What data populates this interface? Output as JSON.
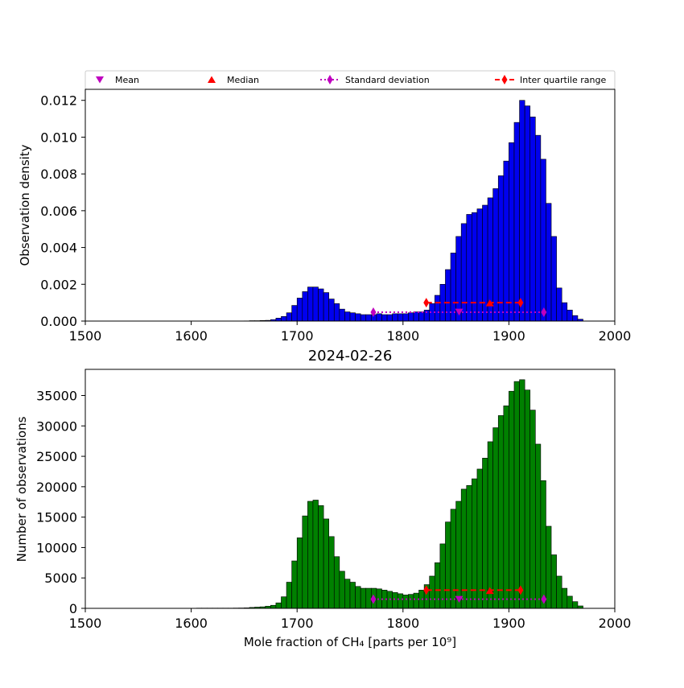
{
  "legend": [
    {
      "key": "mean",
      "label": "Mean",
      "color": "#bf00bf",
      "marker": "triangle-down"
    },
    {
      "key": "median",
      "label": "Median",
      "color": "#ff0000",
      "marker": "triangle-up"
    },
    {
      "key": "std",
      "label": "Standard deviation",
      "color": "#bf00bf",
      "marker": "diamond",
      "line": "dotted"
    },
    {
      "key": "iqr",
      "label": "Inter quartile range",
      "color": "#ff0000",
      "marker": "diamond",
      "line": "dashed"
    }
  ],
  "chart_data": [
    {
      "type": "bar",
      "title": "",
      "ylabel": "Observation density",
      "xlabel": "",
      "xlim": [
        1500,
        2000
      ],
      "ylim": [
        0,
        0.0126
      ],
      "xticks": [
        "1500",
        "1600",
        "1700",
        "1800",
        "1900",
        "2000"
      ],
      "yticks": [
        "0.000",
        "0.002",
        "0.004",
        "0.006",
        "0.008",
        "0.010",
        "0.012"
      ],
      "ytick_values": [
        0,
        0.002,
        0.004,
        0.006,
        0.008,
        0.01,
        0.012
      ],
      "bar_color": "#0000ee",
      "bin_start": 1605,
      "bin_width": 5,
      "values": [
        8e-06,
        8e-06,
        8e-06,
        8e-06,
        8e-06,
        8e-06,
        8e-06,
        8e-06,
        8e-06,
        1e-05,
        2e-05,
        2e-05,
        3e-05,
        4e-05,
        8e-05,
        0.00016,
        0.00025,
        0.00045,
        0.00085,
        0.00125,
        0.0016,
        0.00185,
        0.00185,
        0.00175,
        0.00155,
        0.0012,
        0.00095,
        0.00065,
        0.0005,
        0.00045,
        0.0004,
        0.00035,
        0.00035,
        0.00035,
        0.0004,
        0.00035,
        0.00035,
        0.0004,
        0.0004,
        0.0004,
        0.00045,
        0.0005,
        0.0005,
        0.0006,
        0.00095,
        0.0014,
        0.002,
        0.0028,
        0.0037,
        0.0046,
        0.0053,
        0.0058,
        0.0059,
        0.0061,
        0.0063,
        0.0067,
        0.0072,
        0.0079,
        0.0087,
        0.0097,
        0.0108,
        0.012,
        0.0117,
        0.0111,
        0.0101,
        0.0088,
        0.0064,
        0.0046,
        0.0018,
        0.001,
        0.0006,
        0.0003,
        0.0001
      ],
      "stats": {
        "mean": 1853,
        "median": 1882,
        "std_range": [
          1772,
          1933
        ],
        "iqr_range": [
          1822,
          1911
        ],
        "mean_y": 0.0005,
        "median_y": 0.00098,
        "std_y": 0.00048,
        "iqr_y": 0.001
      }
    },
    {
      "type": "bar",
      "title": "2024-02-26",
      "ylabel": "Number of observations",
      "xlabel": "Mole fraction of CH₄ [parts per 10⁹]",
      "xlim": [
        1500,
        2000
      ],
      "ylim": [
        0,
        39300
      ],
      "xticks": [
        "1500",
        "1600",
        "1700",
        "1800",
        "1900",
        "2000"
      ],
      "yticks": [
        "0",
        "5000",
        "10000",
        "15000",
        "20000",
        "25000",
        "30000",
        "35000"
      ],
      "ytick_values": [
        0,
        5000,
        10000,
        15000,
        20000,
        25000,
        30000,
        35000
      ],
      "bar_color": "#008000",
      "bin_start": 1605,
      "bin_width": 5,
      "values": [
        40,
        40,
        40,
        40,
        40,
        40,
        40,
        50,
        60,
        80,
        150,
        200,
        250,
        350,
        500,
        900,
        1900,
        4300,
        7800,
        11600,
        15200,
        17600,
        17800,
        16900,
        14700,
        11800,
        8500,
        6100,
        4800,
        4300,
        3600,
        3300,
        3300,
        3300,
        3200,
        3000,
        2800,
        2600,
        2400,
        2200,
        2300,
        2500,
        3000,
        3900,
        5300,
        7500,
        10600,
        14200,
        16300,
        17600,
        19600,
        20200,
        21300,
        22900,
        24700,
        27400,
        29700,
        31700,
        33300,
        35700,
        37300,
        37600,
        35900,
        32600,
        27000,
        21000,
        13500,
        8800,
        5300,
        3300,
        2000,
        1100,
        400
      ],
      "stats": {
        "mean": 1853,
        "median": 1882,
        "std_range": [
          1772,
          1933
        ],
        "iqr_range": [
          1822,
          1911
        ],
        "mean_y": 1500,
        "median_y": 2900,
        "std_y": 1500,
        "iqr_y": 3000
      }
    }
  ]
}
